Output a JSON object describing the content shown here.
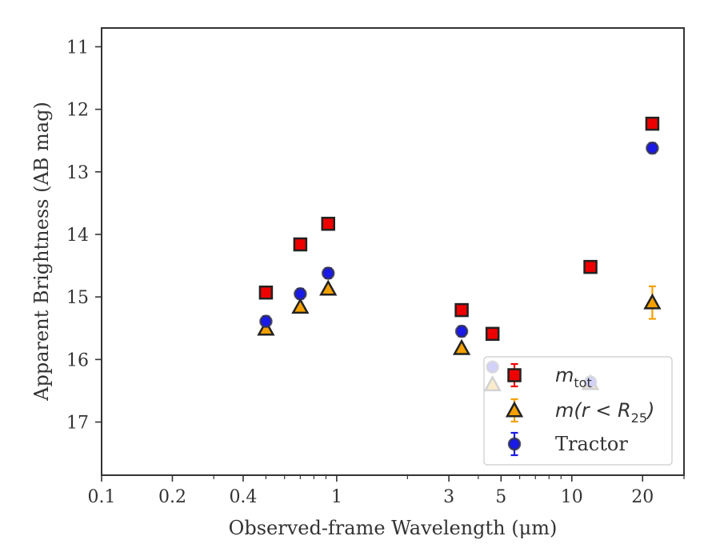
{
  "chart_data": {
    "type": "scatter",
    "xscale": "log",
    "xlim": [
      0.1,
      30
    ],
    "ylim": [
      17.85,
      10.7
    ],
    "y_inverted": true,
    "xlabel": "Observed-frame Wavelength (μm)",
    "ylabel": "Apparent Brightness (AB mag)",
    "xticks": [
      {
        "value": 0.1,
        "label": "0.1"
      },
      {
        "value": 0.2,
        "label": "0.2"
      },
      {
        "value": 0.4,
        "label": "0.4"
      },
      {
        "value": 1,
        "label": "1"
      },
      {
        "value": 3,
        "label": "3"
      },
      {
        "value": 5,
        "label": "5"
      },
      {
        "value": 10,
        "label": "10"
      },
      {
        "value": 20,
        "label": "20"
      }
    ],
    "xminor": [
      0.3,
      0.5,
      0.6,
      0.7,
      0.8,
      0.9,
      2,
      4,
      6,
      7,
      8,
      9,
      30
    ],
    "yticks": [
      {
        "value": 11,
        "label": "11"
      },
      {
        "value": 12,
        "label": "12"
      },
      {
        "value": 13,
        "label": "13"
      },
      {
        "value": 14,
        "label": "14"
      },
      {
        "value": 15,
        "label": "15"
      },
      {
        "value": 16,
        "label": "16"
      },
      {
        "value": 17,
        "label": "17"
      }
    ],
    "grid": false,
    "legend_position": "lower-right",
    "series": [
      {
        "name": "m_tot",
        "marker": "square",
        "face": "#ee0000",
        "edge": "#222222",
        "errcolor": "#ee0000",
        "points": [
          {
            "x": 0.5,
            "y": 14.93,
            "err": 0.02
          },
          {
            "x": 0.7,
            "y": 14.16,
            "err": 0.02
          },
          {
            "x": 0.92,
            "y": 13.83,
            "err": 0.02
          },
          {
            "x": 3.4,
            "y": 15.21,
            "err": 0.02
          },
          {
            "x": 4.6,
            "y": 15.59,
            "err": 0.02
          },
          {
            "x": 12.0,
            "y": 14.52,
            "err": 0.02
          },
          {
            "x": 22.0,
            "y": 12.23,
            "err": 0.02
          }
        ]
      },
      {
        "name": "m(r<R25)",
        "marker": "triangle",
        "face": "#f5a000",
        "edge": "#222222",
        "errcolor": "#f5a000",
        "points": [
          {
            "x": 0.5,
            "y": 15.51,
            "err": 0.02
          },
          {
            "x": 0.7,
            "y": 15.16,
            "err": 0.02
          },
          {
            "x": 0.92,
            "y": 14.87,
            "err": 0.02
          },
          {
            "x": 3.4,
            "y": 15.82,
            "err": 0.02
          },
          {
            "x": 4.6,
            "y": 16.4,
            "err": 0.03
          },
          {
            "x": 12.0,
            "y": 16.38,
            "err": 0.08
          },
          {
            "x": 22.0,
            "y": 15.09,
            "err": 0.26
          }
        ]
      },
      {
        "name": "Tractor",
        "marker": "circle",
        "face": "#1a1ae6",
        "edge": "#333344",
        "errcolor": "#1a1ae6",
        "points": [
          {
            "x": 0.5,
            "y": 15.39,
            "err": 0.08
          },
          {
            "x": 0.7,
            "y": 14.95,
            "err": 0.08
          },
          {
            "x": 0.92,
            "y": 14.62,
            "err": 0.08
          },
          {
            "x": 3.4,
            "y": 15.55,
            "err": 0.08
          },
          {
            "x": 4.6,
            "y": 16.12,
            "err": 0.06
          },
          {
            "x": 12.0,
            "y": 16.36,
            "err": 0.05
          },
          {
            "x": 22.0,
            "y": 12.62,
            "err": 0.08
          }
        ]
      }
    ]
  },
  "legend": {
    "items": [
      {
        "main": "m",
        "sub": "tot",
        "after": ""
      },
      {
        "main": "m(r < R",
        "sub": "25",
        "after": ")"
      },
      {
        "main": "Tractor",
        "sub": "",
        "after": ""
      }
    ]
  }
}
